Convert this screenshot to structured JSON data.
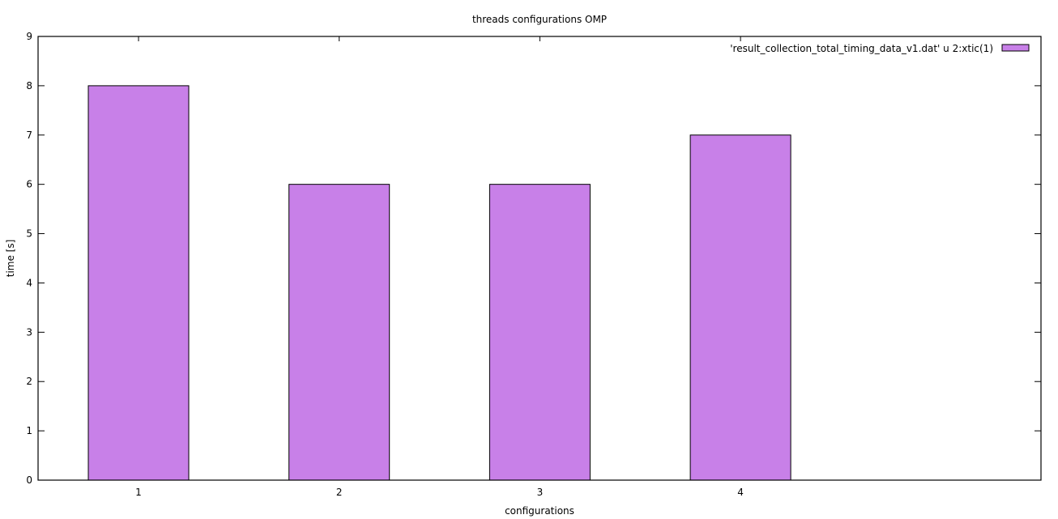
{
  "chart_data": {
    "type": "bar",
    "title": "threads configurations OMP",
    "xlabel": "configurations",
    "ylabel": "time [s]",
    "categories": [
      "1",
      "2",
      "3",
      "4"
    ],
    "series": [
      {
        "name": "'result_collection_total_timing_data_v1.dat' u 2:xtic(1)",
        "values": [
          8,
          6,
          6,
          7
        ],
        "color": "#c880e8"
      }
    ],
    "ylim": [
      0,
      9
    ],
    "yticks": [
      0,
      1,
      2,
      3,
      4,
      5,
      6,
      7,
      8,
      9
    ],
    "grid": false,
    "legend_position": "top-right"
  }
}
